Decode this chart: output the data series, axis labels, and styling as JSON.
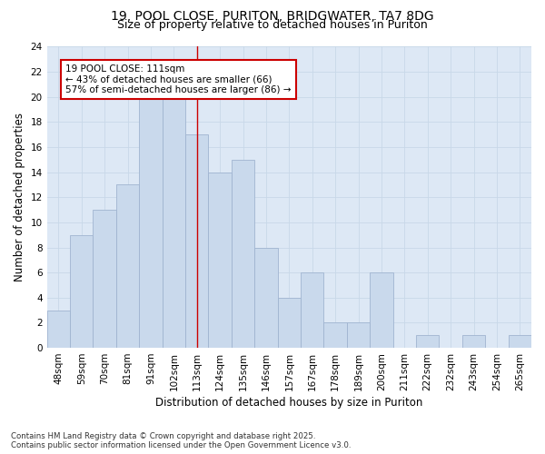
{
  "title1": "19, POOL CLOSE, PURITON, BRIDGWATER, TA7 8DG",
  "title2": "Size of property relative to detached houses in Puriton",
  "xlabel": "Distribution of detached houses by size in Puriton",
  "ylabel": "Number of detached properties",
  "categories": [
    "48sqm",
    "59sqm",
    "70sqm",
    "81sqm",
    "91sqm",
    "102sqm",
    "113sqm",
    "124sqm",
    "135sqm",
    "146sqm",
    "157sqm",
    "167sqm",
    "178sqm",
    "189sqm",
    "200sqm",
    "211sqm",
    "222sqm",
    "232sqm",
    "243sqm",
    "254sqm",
    "265sqm"
  ],
  "values": [
    3,
    9,
    11,
    13,
    20,
    20,
    17,
    14,
    15,
    8,
    4,
    6,
    2,
    2,
    6,
    0,
    1,
    0,
    1,
    0,
    1
  ],
  "bar_color": "#c9d9ec",
  "bar_edge_color": "#a0b4d0",
  "bar_width": 1.0,
  "vline_x": 6,
  "vline_color": "#cc0000",
  "annotation_text": "19 POOL CLOSE: 111sqm\n← 43% of detached houses are smaller (66)\n57% of semi-detached houses are larger (86) →",
  "annotation_box_color": "#ffffff",
  "annotation_box_edge_color": "#cc0000",
  "ylim": [
    0,
    24
  ],
  "yticks": [
    0,
    2,
    4,
    6,
    8,
    10,
    12,
    14,
    16,
    18,
    20,
    22,
    24
  ],
  "grid_color": "#c8d8e8",
  "background_color": "#dde8f5",
  "footer": "Contains HM Land Registry data © Crown copyright and database right 2025.\nContains public sector information licensed under the Open Government Licence v3.0.",
  "title_fontsize": 10,
  "subtitle_fontsize": 9,
  "axis_label_fontsize": 8.5,
  "tick_fontsize": 7.5,
  "annotation_fontsize": 7.5
}
